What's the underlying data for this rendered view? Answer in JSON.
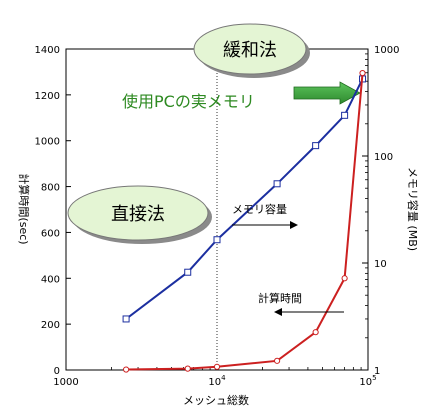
{
  "chart_data": {
    "type": "line",
    "xlabel": "メッシュ総数",
    "ylabel_left": "計算時間(sec)",
    "ylabel_right": "メモリ容量 (MB)",
    "x_scale": "log",
    "xlim": [
      1000,
      100000
    ],
    "x_ticks": [
      {
        "value": 1000,
        "label": "1000"
      },
      {
        "value": 10000,
        "label": "10",
        "exp": "4"
      },
      {
        "value": 100000,
        "label": "10",
        "exp": "5"
      }
    ],
    "ylim_left": [
      0,
      1400
    ],
    "y_ticks_left": [
      "0",
      "200",
      "400",
      "600",
      "800",
      "1000",
      "1200",
      "1400"
    ],
    "y_scale_right": "log",
    "ylim_right": [
      1,
      1000
    ],
    "y_ticks_right": [
      {
        "value": 1,
        "label": "1"
      },
      {
        "value": 10,
        "label": "10"
      },
      {
        "value": 100,
        "label": "100"
      },
      {
        "value": 1000,
        "label": "1000"
      }
    ],
    "grid": "vertical dotted",
    "series": [
      {
        "name": "メモリ容量",
        "axis": "right",
        "color": "#1c2fa0",
        "marker": "square",
        "x": [
          2500,
          6400,
          10000,
          25000,
          45000,
          70000,
          92000
        ],
        "y": [
          3.0,
          8.2,
          16.5,
          55,
          125,
          240,
          525
        ]
      },
      {
        "name": "計算時間",
        "axis": "left",
        "color": "#cc2020",
        "marker": "circle",
        "x": [
          2500,
          6400,
          10000,
          25000,
          45000,
          70000,
          92000
        ],
        "y": [
          2,
          6,
          14,
          40,
          165,
          400,
          1295
        ]
      }
    ],
    "annotations": {
      "method_top": "緩和法",
      "method_left": "直接法",
      "memory_limit": "使用PCの実メモリ",
      "memory_label": "メモリ容量",
      "time_label": "計算時間"
    }
  },
  "colors": {
    "ellipse_fill": "#e4f5d4",
    "ellipse_shadow": "#8a8a8a",
    "green_text": "#2e8a22",
    "green_arrow": "#3aa13a"
  }
}
